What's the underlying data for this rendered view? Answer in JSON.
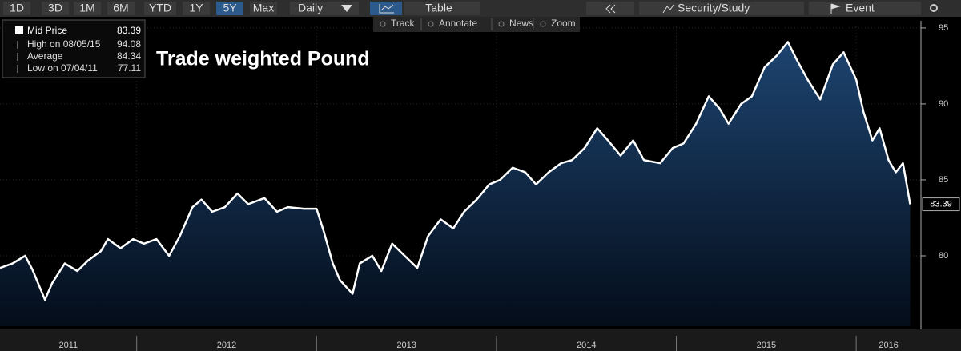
{
  "toolbar": {
    "ranges": [
      "1D",
      "3D",
      "1M",
      "6M",
      "YTD",
      "1Y",
      "5Y",
      "Max"
    ],
    "active_range": 6,
    "frequency": "Daily",
    "view": "Table",
    "security_study": "Security/Study",
    "event": "Event"
  },
  "chart_tools": [
    "Track",
    "Annotate",
    "News",
    "Zoom"
  ],
  "chart_data": {
    "type": "area",
    "title": "Trade weighted Pound",
    "series": [
      {
        "name": "Mid Price",
        "color": "#ffffff",
        "x": [
          2011.24,
          2011.31,
          2011.38,
          2011.42,
          2011.49,
          2011.53,
          2011.6,
          2011.67,
          2011.73,
          2011.8,
          2011.84,
          2011.91,
          2011.98,
          2012.04,
          2012.11,
          2012.18,
          2012.24,
          2012.31,
          2012.36,
          2012.42,
          2012.49,
          2012.56,
          2012.62,
          2012.71,
          2012.78,
          2012.84,
          2012.93,
          2013.0,
          2013.04,
          2013.09,
          2013.13,
          2013.2,
          2013.24,
          2013.31,
          2013.36,
          2013.42,
          2013.49,
          2013.56,
          2013.62,
          2013.69,
          2013.76,
          2013.82,
          2013.89,
          2013.96,
          2014.02,
          2014.09,
          2014.16,
          2014.22,
          2014.29,
          2014.36,
          2014.42,
          2014.49,
          2014.56,
          2014.62,
          2014.69,
          2014.76,
          2014.82,
          2014.91,
          2014.98,
          2015.04,
          2015.11,
          2015.18,
          2015.24,
          2015.29,
          2015.36,
          2015.42,
          2015.49,
          2015.56,
          2015.62,
          2015.67,
          2015.73,
          2015.8,
          2015.87,
          2015.93,
          2016.0,
          2016.04,
          2016.09,
          2016.13,
          2016.18,
          2016.22,
          2016.26,
          2016.3
        ],
        "values": [
          79.2,
          79.5,
          80.0,
          79.1,
          77.11,
          78.2,
          79.5,
          79.0,
          79.7,
          80.3,
          81.1,
          80.5,
          81.1,
          80.8,
          81.1,
          80.0,
          81.3,
          83.2,
          83.7,
          82.9,
          83.2,
          84.1,
          83.4,
          83.8,
          82.9,
          83.2,
          83.1,
          83.1,
          81.6,
          79.5,
          78.4,
          77.5,
          79.5,
          80.0,
          79.0,
          80.8,
          80.0,
          79.2,
          81.3,
          82.4,
          81.8,
          82.9,
          83.7,
          84.7,
          85.0,
          85.8,
          85.5,
          84.7,
          85.5,
          86.1,
          86.3,
          87.1,
          88.4,
          87.6,
          86.6,
          87.6,
          86.3,
          86.1,
          87.1,
          87.4,
          88.7,
          90.5,
          89.7,
          88.7,
          90.0,
          90.5,
          92.4,
          93.2,
          94.08,
          92.9,
          91.6,
          90.3,
          92.6,
          93.4,
          91.6,
          89.5,
          87.6,
          88.4,
          86.3,
          85.5,
          86.1,
          83.39
        ]
      }
    ],
    "stats": [
      {
        "label": "High on 08/05/15",
        "value": 94.08
      },
      {
        "label": "Average",
        "value": 84.34
      },
      {
        "label": "Low on 07/04/11",
        "value": 77.11
      }
    ],
    "xlim": [
      2011.24,
      2016.36
    ],
    "xticks": [
      2012,
      2013,
      2014,
      2015,
      2016
    ],
    "year_labels": [
      "2011",
      "2012",
      "2013",
      "2014",
      "2015",
      "2016"
    ],
    "ylim": [
      75.37,
      95.1
    ],
    "yticks": [
      80,
      85,
      90,
      95
    ],
    "grid": true,
    "fill_top": "#1d4470",
    "fill_bottom": "#040d1a"
  }
}
